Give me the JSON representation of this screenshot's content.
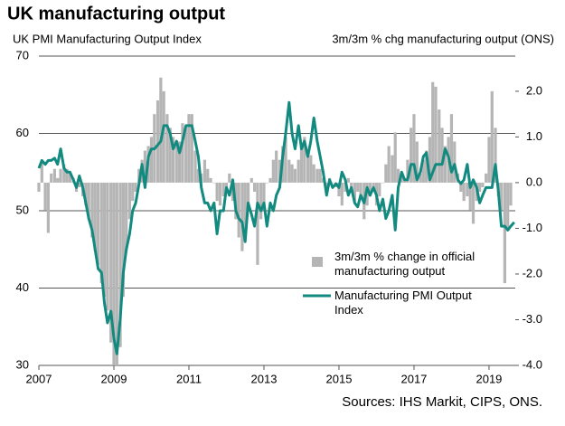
{
  "chart_data": {
    "type": "bar-line",
    "title": "UK manufacturing output",
    "y_label": "UK PMI Manufacturing Output Index",
    "y2_label": "3m/3m % chg manufacturing output (ONS)",
    "source": "Sources: IHS Markit, CIPS, ONS.",
    "xlim": [
      2007,
      2019.7
    ],
    "xticks": [
      2007,
      2009,
      2011,
      2013,
      2015,
      2017,
      2019
    ],
    "ylim": [
      30,
      70
    ],
    "yticks": [
      30,
      40,
      50,
      60,
      70
    ],
    "y2lim": [
      -4,
      2.77
    ],
    "y2ticks": [
      {
        "value": 2,
        "label": "2.0"
      },
      {
        "value": 1,
        "label": "1.0"
      },
      {
        "value": 0,
        "label": "0.0"
      },
      {
        "value": -1,
        "label": "-1.0"
      },
      {
        "value": -2,
        "label": "-2.0"
      },
      {
        "value": -3,
        "label": "-3.0"
      },
      {
        "value": -4,
        "label": "-4.0"
      }
    ],
    "grid": true,
    "x": [
      2007.0,
      2007.08,
      2007.17,
      2007.25,
      2007.33,
      2007.42,
      2007.5,
      2007.58,
      2007.67,
      2007.75,
      2007.83,
      2007.92,
      2008.0,
      2008.08,
      2008.17,
      2008.25,
      2008.33,
      2008.42,
      2008.5,
      2008.58,
      2008.67,
      2008.75,
      2008.83,
      2008.92,
      2009.0,
      2009.08,
      2009.17,
      2009.25,
      2009.33,
      2009.42,
      2009.5,
      2009.58,
      2009.67,
      2009.75,
      2009.83,
      2009.92,
      2010.0,
      2010.08,
      2010.17,
      2010.25,
      2010.33,
      2010.42,
      2010.5,
      2010.58,
      2010.67,
      2010.75,
      2010.83,
      2010.92,
      2011.0,
      2011.08,
      2011.17,
      2011.25,
      2011.33,
      2011.42,
      2011.5,
      2011.58,
      2011.67,
      2011.75,
      2011.83,
      2011.92,
      2012.0,
      2012.08,
      2012.17,
      2012.25,
      2012.33,
      2012.42,
      2012.5,
      2012.58,
      2012.67,
      2012.75,
      2012.83,
      2012.92,
      2013.0,
      2013.08,
      2013.17,
      2013.25,
      2013.33,
      2013.42,
      2013.5,
      2013.58,
      2013.67,
      2013.75,
      2013.83,
      2013.92,
      2014.0,
      2014.08,
      2014.17,
      2014.25,
      2014.33,
      2014.42,
      2014.5,
      2014.58,
      2014.67,
      2014.75,
      2014.83,
      2014.92,
      2015.0,
      2015.08,
      2015.17,
      2015.25,
      2015.33,
      2015.42,
      2015.5,
      2015.58,
      2015.67,
      2015.75,
      2015.83,
      2015.92,
      2016.0,
      2016.08,
      2016.17,
      2016.25,
      2016.33,
      2016.42,
      2016.5,
      2016.58,
      2016.67,
      2016.75,
      2016.83,
      2016.92,
      2017.0,
      2017.08,
      2017.17,
      2017.25,
      2017.33,
      2017.42,
      2017.5,
      2017.58,
      2017.67,
      2017.75,
      2017.83,
      2017.92,
      2018.0,
      2018.08,
      2018.17,
      2018.25,
      2018.33,
      2018.42,
      2018.5,
      2018.58,
      2018.67,
      2018.75,
      2018.83,
      2018.92,
      2019.0,
      2019.08,
      2019.17,
      2019.25,
      2019.33,
      2019.42,
      2019.5,
      2019.58,
      2019.67
    ],
    "series": [
      {
        "name": "3m/3m % change in official manufacturing output",
        "kind": "bar",
        "axis": "y2",
        "color": "#b5b5b5",
        "values": [
          -0.2,
          0.5,
          -0.6,
          -1.1,
          0.2,
          0.3,
          0.1,
          0.3,
          0.4,
          0.3,
          0.2,
          0.1,
          -0.2,
          -0.1,
          -0.3,
          -0.5,
          -0.8,
          -1.2,
          -1.5,
          -1.8,
          -2.2,
          -2.5,
          -2.8,
          -3.5,
          -4.0,
          -4.0,
          -3.6,
          -2.5,
          -1.5,
          -0.8,
          -0.4,
          -0.2,
          0.3,
          0.5,
          0.7,
          0.8,
          1.0,
          1.5,
          1.8,
          2.3,
          2.0,
          1.5,
          1.2,
          1.0,
          0.8,
          0.9,
          1.3,
          1.2,
          1.5,
          1.5,
          0.7,
          0.3,
          0.2,
          0.5,
          0.3,
          0.1,
          0.0,
          -0.4,
          -0.5,
          -0.3,
          -0.2,
          0.2,
          -0.4,
          -0.8,
          -1.2,
          -1.5,
          -1.2,
          -0.5,
          0.1,
          -0.2,
          -1.8,
          -0.8,
          -0.6,
          0.0,
          0.1,
          0.5,
          0.7,
          0.5,
          0.8,
          1.0,
          0.5,
          0.4,
          0.3,
          0.5,
          0.8,
          1.0,
          0.7,
          0.6,
          0.4,
          0.3,
          0.3,
          0.1,
          -0.1,
          0.1,
          0.0,
          -0.1,
          -0.3,
          -0.5,
          -0.2,
          0.1,
          -0.2,
          -0.4,
          -0.2,
          -0.3,
          -0.8,
          -0.5,
          -0.3,
          -0.2,
          -0.5,
          -0.3,
          0.0,
          0.4,
          0.8,
          0.6,
          1.1,
          0.3,
          0.2,
          0.1,
          0.5,
          1.2,
          1.5,
          0.9,
          0.2,
          0.5,
          0.7,
          1.0,
          2.2,
          2.1,
          1.6,
          1.2,
          0.8,
          1.0,
          1.5,
          0.9,
          0.2,
          -0.2,
          -0.4,
          -0.3,
          -0.6,
          -0.9,
          -0.4,
          -0.2,
          -0.1,
          0.2,
          1.0,
          2.0,
          1.2,
          -0.3,
          -0.6,
          -2.2,
          -1.0,
          -0.5,
          null
        ]
      },
      {
        "name": "Manufacturing PMI Output Index",
        "kind": "line",
        "axis": "y",
        "color": "#138a80",
        "values": [
          55.5,
          56.5,
          56,
          56.5,
          56.5,
          56.8,
          56,
          58,
          55.5,
          55,
          55,
          54,
          53,
          54.5,
          53,
          51,
          49,
          47.5,
          45,
          42.5,
          42,
          38,
          35.5,
          37,
          33.5,
          31.5,
          36,
          42,
          45,
          47,
          50,
          51,
          53.5,
          56,
          53,
          57,
          58,
          58,
          58.5,
          59,
          61,
          61,
          60,
          58,
          59,
          57.5,
          59,
          61,
          61,
          61,
          59,
          57,
          53,
          51,
          51,
          50,
          51,
          47,
          50,
          50,
          53,
          52,
          54,
          50,
          49,
          48.5,
          46,
          51,
          49.5,
          48,
          51,
          50,
          51,
          48,
          51,
          50,
          52,
          53,
          57,
          60,
          64,
          60,
          58,
          61,
          58,
          59,
          57,
          59,
          62,
          59,
          57,
          55,
          52,
          54,
          53,
          53.5,
          53,
          55,
          54,
          52,
          53,
          51,
          50.5,
          52,
          51,
          53,
          52,
          53,
          52,
          50,
          51.5,
          49,
          50,
          52,
          47.5,
          53,
          55,
          54,
          54,
          56,
          56,
          54,
          55,
          57,
          57.5,
          54,
          55,
          56,
          56,
          56,
          58,
          57,
          55,
          56,
          54,
          53.5,
          54,
          56,
          53,
          54,
          53,
          51,
          52,
          53,
          53,
          53,
          56,
          52.5,
          48,
          48,
          47.5,
          48,
          48.5
        ]
      }
    ]
  }
}
